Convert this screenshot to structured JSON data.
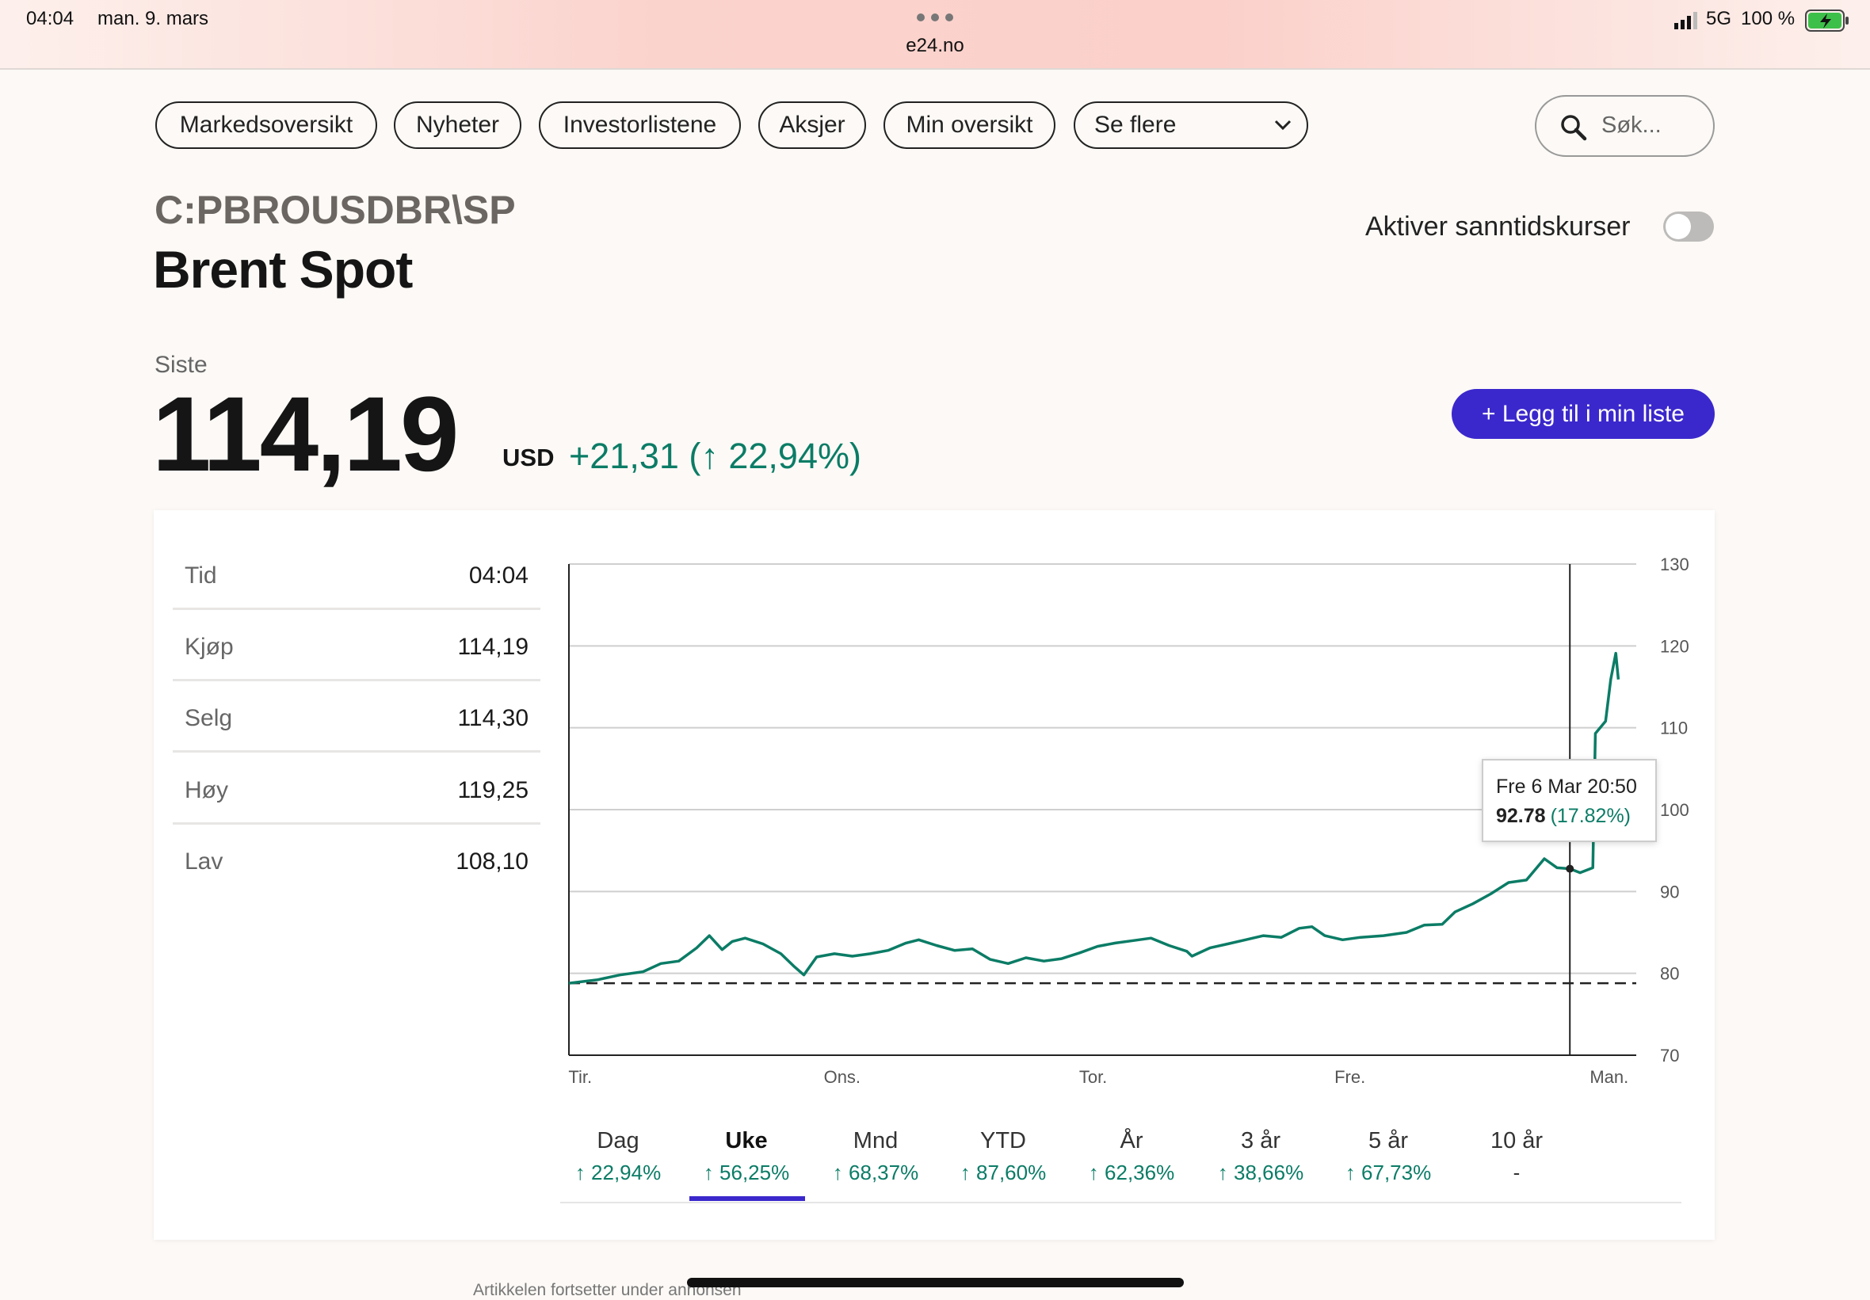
{
  "status_bar": {
    "time": "04:04",
    "date": "man. 9. mars",
    "url": "e24.no",
    "network": "5G",
    "battery": "100 %"
  },
  "nav": {
    "items": [
      "Markedsoversikt",
      "Nyheter",
      "Investorlistene",
      "Aksjer",
      "Min oversikt"
    ],
    "more": "Se flere",
    "search_placeholder": "Søk..."
  },
  "header": {
    "symbol": "C:PBROUSDBR\\SP",
    "title": "Brent Spot",
    "realtime_label": "Aktiver sanntidskurser"
  },
  "quote": {
    "label": "Siste",
    "price": "114,19",
    "currency": "USD",
    "change": "+21,31 (↑ 22,94%)",
    "button": "+ Legg til i min liste"
  },
  "stats": [
    {
      "label": "Tid",
      "value": "04:04"
    },
    {
      "label": "Kjøp",
      "value": "114,19"
    },
    {
      "label": "Selg",
      "value": "114,30"
    },
    {
      "label": "Høy",
      "value": "119,25"
    },
    {
      "label": "Lav",
      "value": "108,10"
    }
  ],
  "chart": {
    "type": "line",
    "color": "#0b7c66",
    "x": [
      -0.06,
      0.05,
      0.14,
      0.23,
      0.3,
      0.37,
      0.44,
      0.49,
      0.54,
      0.58,
      0.63,
      0.7,
      0.77,
      0.82,
      0.86,
      0.91,
      0.98,
      1.05,
      1.12,
      1.19,
      1.26,
      1.31,
      1.38,
      1.45,
      1.52,
      1.59,
      1.66,
      1.73,
      1.8,
      1.87,
      1.94,
      2.01,
      2.08,
      2.15,
      2.22,
      2.29,
      2.36,
      2.38,
      2.45,
      2.52,
      2.59,
      2.66,
      2.73,
      2.8,
      2.85,
      2.9,
      2.97,
      3.04,
      3.13,
      3.22,
      3.29,
      3.36,
      3.41,
      3.48,
      3.55,
      3.62,
      3.69,
      3.76,
      3.81,
      3.86,
      3.9,
      3.95,
      3.96,
      4.0,
      4.02,
      4.04,
      4.05
    ],
    "values": [
      78.8,
      79.2,
      79.8,
      80.2,
      81.2,
      81.5,
      83.1,
      84.6,
      82.9,
      83.9,
      84.3,
      83.6,
      82.4,
      80.9,
      79.8,
      82.0,
      82.4,
      82.1,
      82.4,
      82.8,
      83.7,
      84.1,
      83.4,
      82.8,
      83.0,
      81.7,
      81.2,
      81.9,
      81.5,
      81.8,
      82.5,
      83.3,
      83.7,
      84.0,
      84.3,
      83.4,
      82.7,
      82.1,
      83.1,
      83.6,
      84.1,
      84.6,
      84.4,
      85.5,
      85.7,
      84.6,
      84.1,
      84.4,
      84.6,
      85.0,
      85.9,
      86.0,
      87.5,
      88.5,
      89.7,
      91.1,
      91.4,
      94.0,
      92.9,
      92.78,
      92.3,
      92.9,
      109.3,
      110.8,
      115.9,
      119.1,
      115.9
    ],
    "baseline": 78.8,
    "xlim": [
      -0.06,
      4.12
    ],
    "ylim": [
      70,
      130
    ],
    "yticks": [
      70,
      80,
      90,
      100,
      110,
      120,
      130
    ],
    "xticks": [
      {
        "value": 0,
        "label": "Tir."
      },
      {
        "value": 1,
        "label": "Ons."
      },
      {
        "value": 2,
        "label": "Tor."
      },
      {
        "value": 3,
        "label": "Fre."
      },
      {
        "value": 4,
        "label": "Man."
      }
    ],
    "grid": true,
    "tooltip": {
      "label": "Fre 6 Mar 20:50",
      "value": "92.78",
      "pct": "(17.82%)"
    }
  },
  "periods": [
    {
      "label": "Dag",
      "change": "↑ 22,94%"
    },
    {
      "label": "Uke",
      "change": "↑ 56,25%",
      "selected": true
    },
    {
      "label": "Mnd",
      "change": "↑ 68,37%"
    },
    {
      "label": "YTD",
      "change": "↑ 87,60%"
    },
    {
      "label": "År",
      "change": "↑ 62,36%"
    },
    {
      "label": "3 år",
      "change": "↑ 38,66%"
    },
    {
      "label": "5 år",
      "change": "↑ 67,73%"
    },
    {
      "label": "10 år",
      "change": "-"
    }
  ],
  "footer": {
    "note": "Artikkelen fortsetter under annonsen"
  }
}
